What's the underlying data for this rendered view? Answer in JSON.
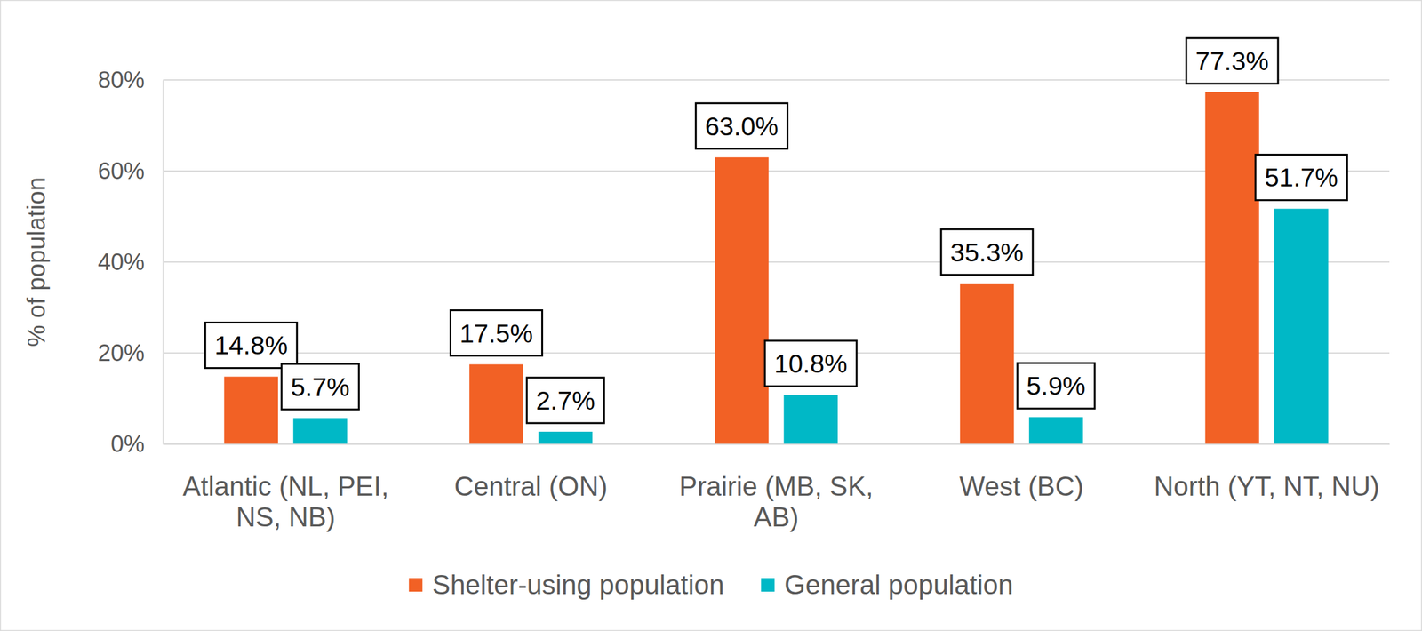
{
  "chart_data": {
    "type": "bar",
    "y_label": "% of population",
    "categories": [
      "Atlantic (NL, PEI, NS, NB)",
      "Central (ON)",
      "Prairie (MB, SK, AB)",
      "West (BC)",
      "North (YT, NT, NU)"
    ],
    "series": [
      {
        "name": "Shelter-using population",
        "color": "#f26125",
        "values": [
          14.8,
          17.5,
          63.0,
          35.3,
          77.3
        ],
        "value_labels": [
          "14.8%",
          "17.5%",
          "63.0%",
          "35.3%",
          "77.3%"
        ]
      },
      {
        "name": "General population",
        "color": "#00b8c6",
        "values": [
          5.7,
          2.7,
          10.8,
          5.9,
          51.7
        ],
        "value_labels": [
          "5.7%",
          "2.7%",
          "10.8%",
          "5.9%",
          "51.7%"
        ]
      }
    ],
    "ylim": [
      0,
      80
    ],
    "yticks": [
      {
        "value": 0,
        "label": "0%"
      },
      {
        "value": 20,
        "label": "20%"
      },
      {
        "value": 40,
        "label": "40%"
      },
      {
        "value": 60,
        "label": "60%"
      },
      {
        "value": 80,
        "label": "80%"
      }
    ],
    "grid": true,
    "data_labels": true,
    "legend": "bottom"
  }
}
